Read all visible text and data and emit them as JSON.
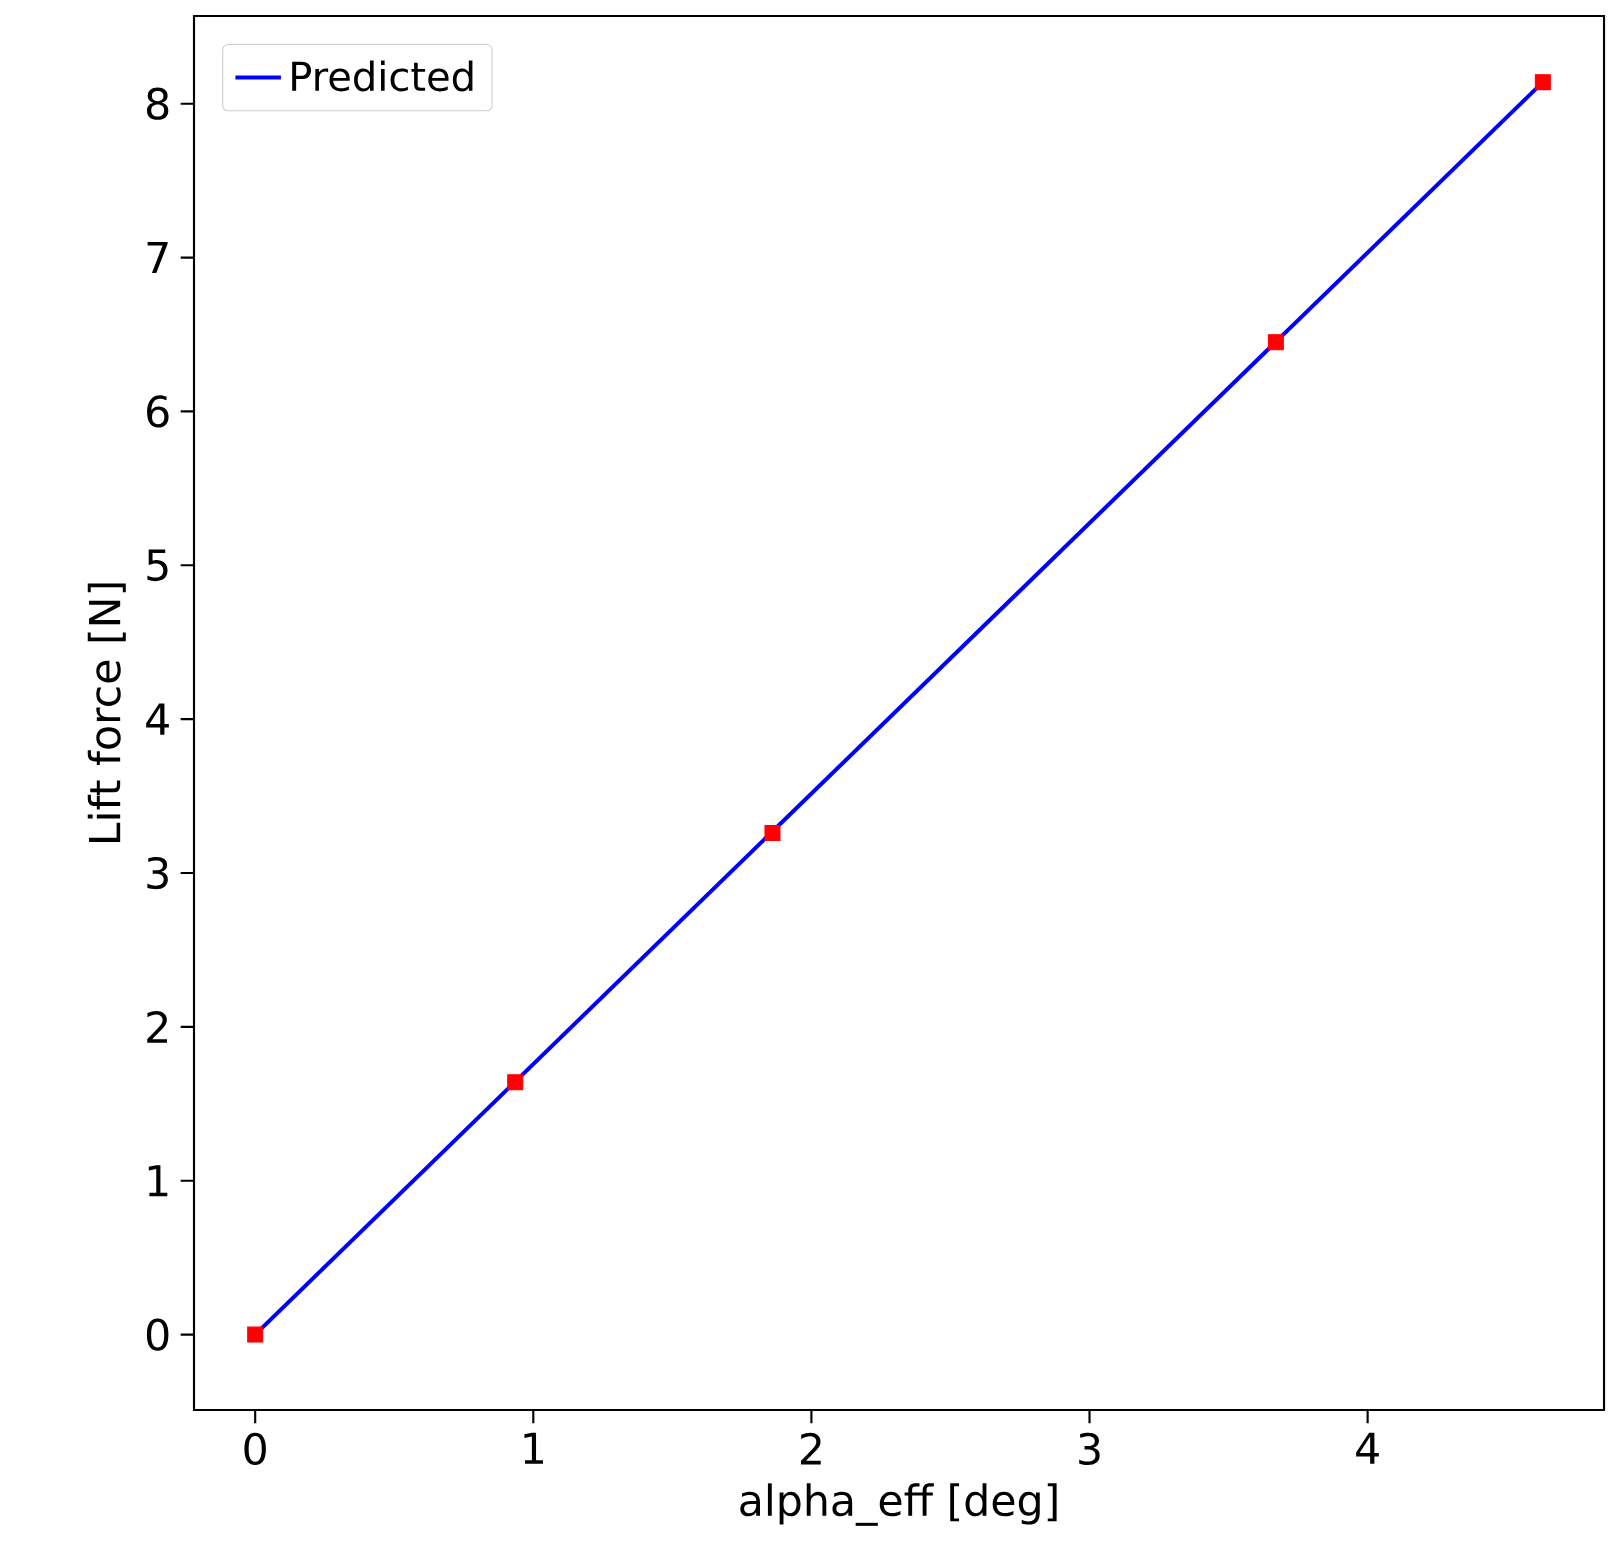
{
  "chart_data": {
    "type": "line",
    "xlabel": "alpha_eff [deg]",
    "ylabel": "Lift force [N]",
    "xlim": [
      -0.22,
      4.85
    ],
    "ylim": [
      -0.49,
      8.57
    ],
    "xticks": [
      0,
      1,
      2,
      3,
      4
    ],
    "yticks": [
      0,
      1,
      2,
      3,
      4,
      5,
      6,
      7,
      8
    ],
    "grid": false,
    "legend": "top left",
    "series": [
      {
        "name": "Predicted",
        "color": "#0000ff",
        "marker": "none",
        "line_style": "solid",
        "x": [
          0,
          4.63
        ],
        "values": [
          0,
          8.14
        ]
      },
      {
        "type": "scatter",
        "color": "#ff0000",
        "marker": "square",
        "x": [
          0,
          0.935,
          1.86,
          3.67,
          4.63
        ],
        "values": [
          0,
          1.64,
          3.26,
          6.45,
          8.14
        ]
      }
    ]
  }
}
